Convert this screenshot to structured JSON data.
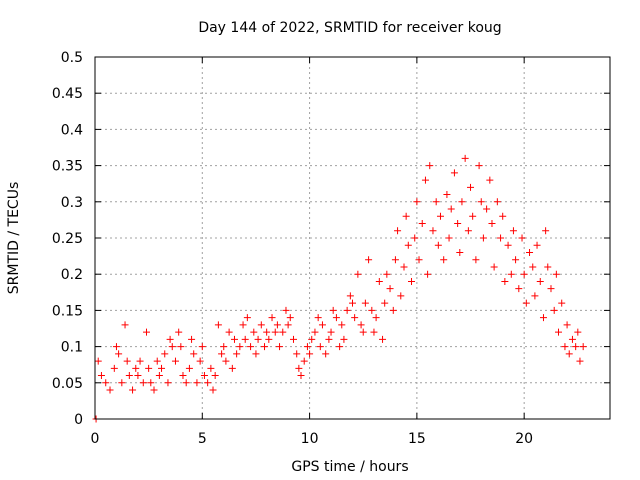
{
  "chart_data": {
    "type": "scatter",
    "title": "Day 144 of 2022, SRMTID for receiver koug",
    "xlabel": "GPS time / hours",
    "ylabel": "SRMTID / TECUs",
    "xlim": [
      0,
      24
    ],
    "ylim": [
      0,
      0.5
    ],
    "grid": true,
    "marker": "+",
    "color": "#ff0000",
    "x_ticks": [
      0,
      5,
      10,
      15,
      20
    ],
    "y_ticks": [
      0,
      0.05,
      0.1,
      0.15,
      0.2,
      0.25,
      0.3,
      0.35,
      0.4,
      0.45,
      0.5
    ],
    "x_tick_labels": [
      "0",
      "5",
      "10",
      "15",
      "20"
    ],
    "y_tick_labels": [
      "0",
      "0.05",
      "0.1",
      "0.15",
      "0.2",
      "0.25",
      "0.3",
      "0.35",
      "0.4",
      "0.45",
      "0.5"
    ],
    "series": [
      {
        "name": "SRMTID",
        "x": [
          0.05,
          0.15,
          0.3,
          0.5,
          0.7,
          0.9,
          1.0,
          1.1,
          1.25,
          1.4,
          1.5,
          1.6,
          1.75,
          1.9,
          2.0,
          2.1,
          2.25,
          2.4,
          2.5,
          2.6,
          2.75,
          2.9,
          3.0,
          3.1,
          3.25,
          3.4,
          3.5,
          3.6,
          3.75,
          3.9,
          4.0,
          4.1,
          4.25,
          4.4,
          4.5,
          4.6,
          4.75,
          4.9,
          5.0,
          5.1,
          5.25,
          5.4,
          5.5,
          5.6,
          5.75,
          5.9,
          6.0,
          6.1,
          6.25,
          6.4,
          6.5,
          6.6,
          6.75,
          6.9,
          7.0,
          7.1,
          7.25,
          7.4,
          7.5,
          7.6,
          7.75,
          7.9,
          8.0,
          8.1,
          8.25,
          8.4,
          8.5,
          8.6,
          8.75,
          8.9,
          9.0,
          9.1,
          9.25,
          9.4,
          9.5,
          9.6,
          9.75,
          9.9,
          10.0,
          10.1,
          10.25,
          10.4,
          10.5,
          10.6,
          10.75,
          10.9,
          11.0,
          11.1,
          11.25,
          11.4,
          11.5,
          11.6,
          11.75,
          11.9,
          12.0,
          12.1,
          12.25,
          12.4,
          12.5,
          12.6,
          12.75,
          12.9,
          13.0,
          13.1,
          13.25,
          13.4,
          13.5,
          13.6,
          13.75,
          13.9,
          14.0,
          14.1,
          14.25,
          14.4,
          14.5,
          14.6,
          14.75,
          14.9,
          15.0,
          15.1,
          15.25,
          15.4,
          15.5,
          15.6,
          15.75,
          15.9,
          16.0,
          16.1,
          16.25,
          16.4,
          16.5,
          16.6,
          16.75,
          16.9,
          17.0,
          17.1,
          17.25,
          17.4,
          17.5,
          17.6,
          17.75,
          17.9,
          18.0,
          18.1,
          18.25,
          18.4,
          18.5,
          18.6,
          18.75,
          18.9,
          19.0,
          19.1,
          19.25,
          19.4,
          19.5,
          19.6,
          19.75,
          19.9,
          20.0,
          20.1,
          20.25,
          20.4,
          20.5,
          20.6,
          20.75,
          20.9,
          21.0,
          21.1,
          21.25,
          21.4,
          21.5,
          21.6,
          21.75,
          21.9,
          22.0,
          22.1,
          22.25,
          22.4,
          22.5,
          22.6,
          22.75
        ],
        "y": [
          0.0,
          0.08,
          0.06,
          0.05,
          0.04,
          0.07,
          0.1,
          0.09,
          0.05,
          0.13,
          0.08,
          0.06,
          0.04,
          0.07,
          0.06,
          0.08,
          0.05,
          0.12,
          0.07,
          0.05,
          0.04,
          0.08,
          0.06,
          0.07,
          0.09,
          0.05,
          0.11,
          0.1,
          0.08,
          0.12,
          0.1,
          0.06,
          0.05,
          0.07,
          0.11,
          0.09,
          0.05,
          0.08,
          0.1,
          0.06,
          0.05,
          0.07,
          0.04,
          0.06,
          0.13,
          0.09,
          0.1,
          0.08,
          0.12,
          0.07,
          0.11,
          0.09,
          0.1,
          0.13,
          0.11,
          0.14,
          0.1,
          0.12,
          0.09,
          0.11,
          0.13,
          0.1,
          0.12,
          0.11,
          0.14,
          0.12,
          0.13,
          0.1,
          0.12,
          0.15,
          0.13,
          0.14,
          0.11,
          0.09,
          0.07,
          0.06,
          0.08,
          0.1,
          0.09,
          0.11,
          0.12,
          0.14,
          0.1,
          0.13,
          0.09,
          0.11,
          0.12,
          0.15,
          0.14,
          0.1,
          0.13,
          0.11,
          0.15,
          0.17,
          0.16,
          0.14,
          0.2,
          0.13,
          0.12,
          0.16,
          0.22,
          0.15,
          0.12,
          0.14,
          0.19,
          0.11,
          0.16,
          0.2,
          0.18,
          0.15,
          0.22,
          0.26,
          0.17,
          0.21,
          0.28,
          0.24,
          0.19,
          0.25,
          0.3,
          0.22,
          0.27,
          0.33,
          0.2,
          0.35,
          0.26,
          0.3,
          0.24,
          0.28,
          0.22,
          0.31,
          0.25,
          0.29,
          0.34,
          0.27,
          0.23,
          0.3,
          0.36,
          0.26,
          0.32,
          0.28,
          0.22,
          0.35,
          0.3,
          0.25,
          0.29,
          0.33,
          0.27,
          0.21,
          0.3,
          0.25,
          0.28,
          0.19,
          0.24,
          0.2,
          0.26,
          0.22,
          0.18,
          0.25,
          0.2,
          0.16,
          0.23,
          0.21,
          0.17,
          0.24,
          0.19,
          0.14,
          0.26,
          0.21,
          0.18,
          0.15,
          0.2,
          0.12,
          0.16,
          0.1,
          0.13,
          0.09,
          0.11,
          0.1,
          0.12,
          0.08,
          0.1
        ]
      }
    ]
  }
}
